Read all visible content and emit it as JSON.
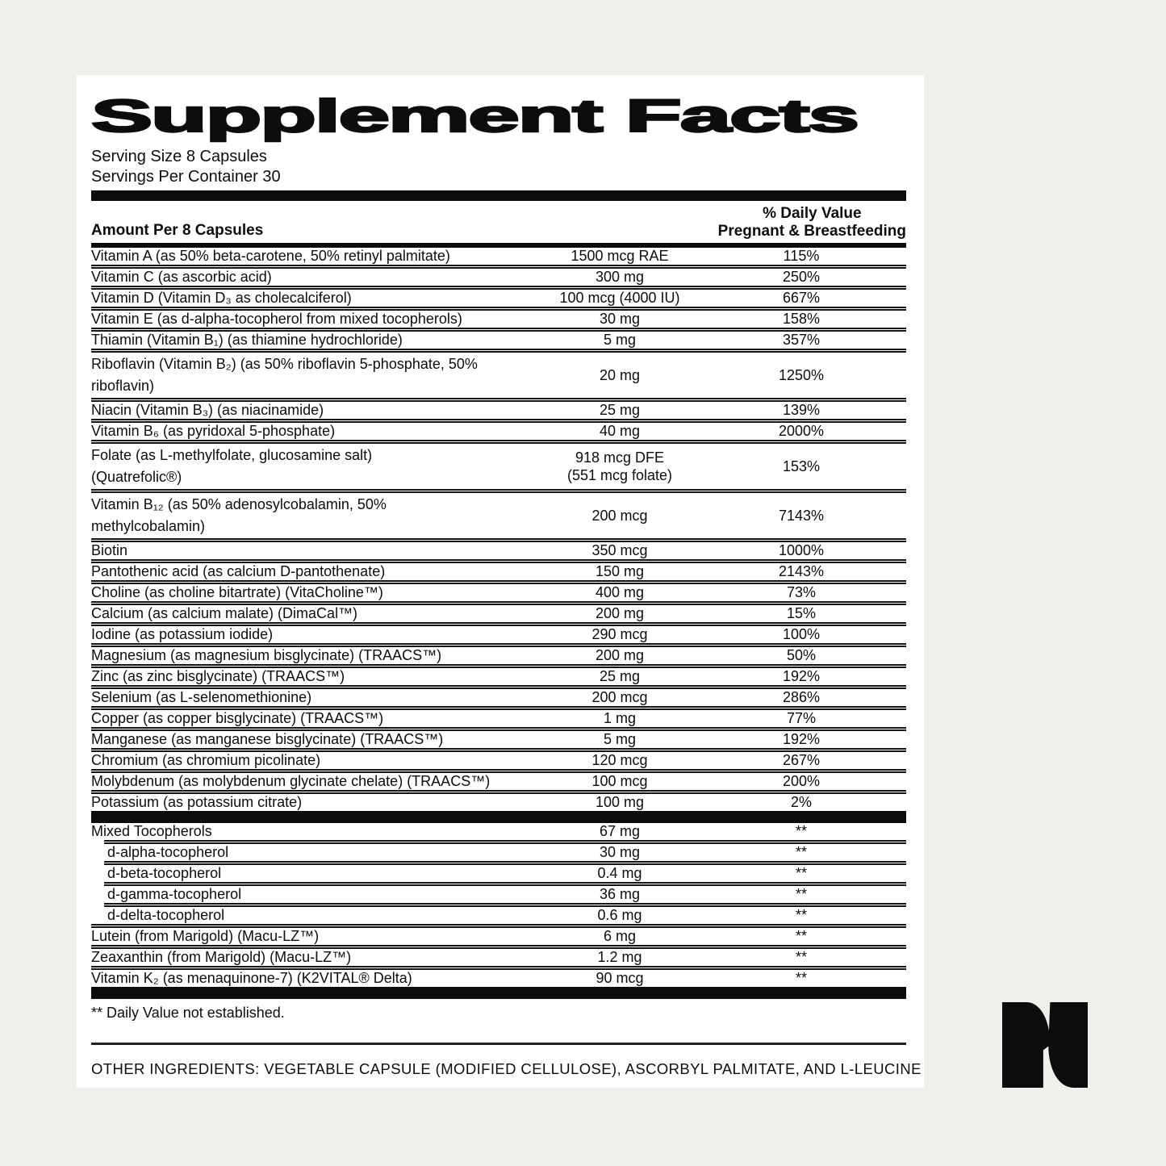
{
  "colors": {
    "background": "#f0efeb",
    "panel": "#ffffff",
    "ink": "#0c0c0c"
  },
  "label": {
    "title": "Supplement Facts",
    "serving_size": "Serving Size 8 Capsules",
    "servings_per_container": "Servings Per Container 30",
    "amount_header": "Amount Per 8 Capsules",
    "dv_header_line1": "% Daily Value",
    "dv_header_line2": "Pregnant & Breastfeeding",
    "footnote": "** Daily Value not established.",
    "other_ingredients": "OTHER INGREDIENTS: VEGETABLE CAPSULE (MODIFIED CELLULOSE), ASCORBYL PALMITATE, AND L-LEUCINE"
  },
  "nutrients_main": [
    {
      "name": "Vitamin A (as 50% beta-carotene, 50% retinyl palmitate)",
      "amount": "1500 mcg RAE",
      "dv": "115%"
    },
    {
      "name": "Vitamin C (as ascorbic acid)",
      "amount": "300 mg",
      "dv": "250%"
    },
    {
      "name": "Vitamin D (Vitamin D₃ as cholecalciferol)",
      "amount": "100 mcg (4000 IU)",
      "dv": "667%"
    },
    {
      "name": "Vitamin E (as d-alpha-tocopherol from mixed tocopherols)",
      "amount": "30 mg",
      "dv": "158%"
    },
    {
      "name": "Thiamin (Vitamin B₁) (as thiamine hydrochloride)",
      "amount": "5 mg",
      "dv": "357%"
    },
    {
      "name": "Riboflavin (Vitamin B₂) (as 50% riboflavin 5-phosphate, 50%\nriboflavin)",
      "amount": "20 mg",
      "dv": "1250%",
      "tall": true
    },
    {
      "name": "Niacin (Vitamin B₃) (as niacinamide)",
      "amount": "25 mg",
      "dv": "139%"
    },
    {
      "name": "Vitamin B₆ (as pyridoxal 5-phosphate)",
      "amount": "40 mg",
      "dv": "2000%"
    },
    {
      "name": "Folate (as L-methylfolate, glucosamine salt)\n(Quatrefolic®)",
      "amount": "918 mcg DFE\n(551 mcg folate)",
      "dv": "153%",
      "tall": true
    },
    {
      "name": "Vitamin B₁₂ (as 50% adenosylcobalamin, 50%\nmethylcobalamin)",
      "amount": "200 mcg",
      "dv": "7143%",
      "tall": true
    },
    {
      "name": "Biotin",
      "amount": "350 mcg",
      "dv": "1000%"
    },
    {
      "name": "Pantothenic acid (as calcium D-pantothenate)",
      "amount": "150 mg",
      "dv": "2143%"
    },
    {
      "name": "Choline (as choline bitartrate) (VitaCholine™)",
      "amount": "400 mg",
      "dv": "73%"
    },
    {
      "name": "Calcium (as calcium malate) (DimaCal™)",
      "amount": "200 mg",
      "dv": "15%"
    },
    {
      "name": "Iodine (as potassium iodide)",
      "amount": "290 mcg",
      "dv": "100%"
    },
    {
      "name": "Magnesium (as magnesium bisglycinate) (TRAACS™)",
      "amount": "200 mg",
      "dv": "50%"
    },
    {
      "name": "Zinc (as zinc bisglycinate) (TRAACS™)",
      "amount": "25 mg",
      "dv": "192%"
    },
    {
      "name": "Selenium (as L-selenomethionine)",
      "amount": "200 mcg",
      "dv": "286%"
    },
    {
      "name": "Copper (as copper bisglycinate) (TRAACS™)",
      "amount": "1 mg",
      "dv": "77%"
    },
    {
      "name": "Manganese (as manganese bisglycinate) (TRAACS™)",
      "amount": "5 mg",
      "dv": "192%"
    },
    {
      "name": "Chromium (as chromium picolinate)",
      "amount": "120 mcg",
      "dv": "267%"
    },
    {
      "name": "Molybdenum (as molybdenum glycinate chelate) (TRAACS™)",
      "amount": "100 mcg",
      "dv": "200%"
    },
    {
      "name": "Potassium (as potassium citrate)",
      "amount": "100 mg",
      "dv": "2%"
    }
  ],
  "nutrients_other": [
    {
      "name": "Mixed Tocopherols",
      "amount": "67 mg",
      "dv": "**"
    },
    {
      "name": "d-alpha-tocopherol",
      "amount": "30 mg",
      "dv": "**",
      "indent": true
    },
    {
      "name": "d-beta-tocopherol",
      "amount": "0.4 mg",
      "dv": "**",
      "indent": true
    },
    {
      "name": "d-gamma-tocopherol",
      "amount": "36 mg",
      "dv": "**",
      "indent": true
    },
    {
      "name": "d-delta-tocopherol",
      "amount": "0.6 mg",
      "dv": "**",
      "indent": true
    },
    {
      "name": "Lutein (from Marigold) (Macu-LZ™)",
      "amount": "6 mg",
      "dv": "**"
    },
    {
      "name": "Zeaxanthin (from Marigold) (Macu-LZ™)",
      "amount": "1.2 mg",
      "dv": "**"
    },
    {
      "name": "Vitamin K₂ (as menaquinone-7) (K2VITAL® Delta)",
      "amount": "90 mcg",
      "dv": "**"
    }
  ],
  "logo": {
    "name": "brand-n-logomark",
    "color": "#0c0c0c"
  }
}
